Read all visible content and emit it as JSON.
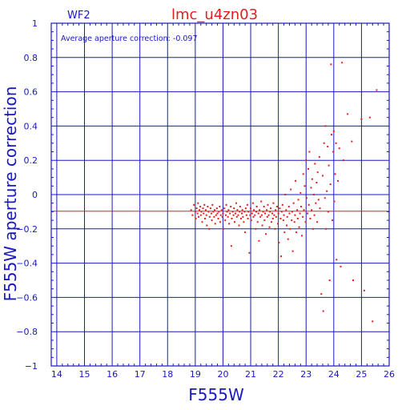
{
  "chart_data": {
    "type": "scatter",
    "title": "lmc_u4zn03",
    "chip_label": "WF2",
    "annotation": "Average aperture correction:  -0.097",
    "xlabel": "F555W",
    "ylabel": "F555W aperture correction",
    "xlim": [
      13.8,
      26
    ],
    "ylim": [
      -1,
      1
    ],
    "x_ticks": [
      14,
      15,
      16,
      17,
      18,
      19,
      20,
      21,
      22,
      23,
      24,
      25,
      26
    ],
    "y_ticks": [
      -1,
      -0.8,
      -0.6,
      -0.4,
      -0.2,
      0,
      0.2,
      0.4,
      0.6,
      0.8,
      1
    ],
    "y_tick_labels": [
      "−1",
      "−0.8",
      "−0.6",
      "−0.4",
      "−0.2",
      "0",
      "0.2",
      "0.4",
      "0.6",
      "0.8",
      "1"
    ],
    "grid": true,
    "reference_line": {
      "y": -0.097,
      "label": "average"
    },
    "colors": {
      "axes": "#1818c0",
      "points": "#e02020",
      "reference_line": "#e02020",
      "title": "#e02020"
    },
    "points": [
      [
        18.85,
        -0.09
      ],
      [
        18.9,
        -0.12
      ],
      [
        18.95,
        -0.06
      ],
      [
        19.0,
        -0.1
      ],
      [
        19.02,
        -0.14
      ],
      [
        19.05,
        -0.08
      ],
      [
        19.08,
        -0.11
      ],
      [
        19.1,
        -0.05
      ],
      [
        19.12,
        -0.13
      ],
      [
        19.15,
        -0.09
      ],
      [
        19.18,
        -0.07
      ],
      [
        19.2,
        -0.12
      ],
      [
        19.22,
        -0.1
      ],
      [
        19.25,
        -0.16
      ],
      [
        19.28,
        -0.08
      ],
      [
        19.3,
        -0.11
      ],
      [
        19.33,
        -0.06
      ],
      [
        19.35,
        -0.14
      ],
      [
        19.38,
        -0.09
      ],
      [
        19.4,
        -0.12
      ],
      [
        19.42,
        -0.18
      ],
      [
        19.45,
        -0.07
      ],
      [
        19.48,
        -0.1
      ],
      [
        19.5,
        -0.2
      ],
      [
        19.52,
        -0.13
      ],
      [
        19.55,
        -0.08
      ],
      [
        19.58,
        -0.11
      ],
      [
        19.6,
        -0.15
      ],
      [
        19.62,
        -0.06
      ],
      [
        19.65,
        -0.1
      ],
      [
        19.68,
        -0.13
      ],
      [
        19.7,
        -0.09
      ],
      [
        19.72,
        -0.17
      ],
      [
        19.75,
        -0.12
      ],
      [
        19.78,
        -0.08
      ],
      [
        19.8,
        -0.11
      ],
      [
        19.83,
        -0.14
      ],
      [
        19.85,
        -0.1
      ],
      [
        19.88,
        -0.07
      ],
      [
        19.9,
        -0.16
      ],
      [
        19.92,
        -0.12
      ],
      [
        19.95,
        -0.09
      ],
      [
        19.98,
        -0.13
      ],
      [
        20.0,
        -0.11
      ],
      [
        20.02,
        -0.2
      ],
      [
        20.05,
        -0.08
      ],
      [
        20.08,
        -0.15
      ],
      [
        20.1,
        -0.12
      ],
      [
        20.12,
        -0.06
      ],
      [
        20.15,
        -0.1
      ],
      [
        20.18,
        -0.13
      ],
      [
        20.2,
        -0.09
      ],
      [
        20.22,
        -0.17
      ],
      [
        20.25,
        -0.11
      ],
      [
        20.28,
        -0.07
      ],
      [
        20.3,
        -0.3
      ],
      [
        20.32,
        -0.14
      ],
      [
        20.35,
        -0.1
      ],
      [
        20.38,
        -0.12
      ],
      [
        20.4,
        -0.08
      ],
      [
        20.42,
        -0.16
      ],
      [
        20.45,
        -0.11
      ],
      [
        20.48,
        -0.05
      ],
      [
        20.5,
        -0.13
      ],
      [
        20.52,
        -0.09
      ],
      [
        20.55,
        -0.12
      ],
      [
        20.58,
        -0.18
      ],
      [
        20.6,
        -0.1
      ],
      [
        20.62,
        -0.07
      ],
      [
        20.65,
        -0.14
      ],
      [
        20.68,
        -0.11
      ],
      [
        20.7,
        -0.09
      ],
      [
        20.72,
        -0.13
      ],
      [
        20.75,
        -0.16
      ],
      [
        20.78,
        -0.1
      ],
      [
        20.8,
        -0.22
      ],
      [
        20.82,
        -0.08
      ],
      [
        20.85,
        -0.12
      ],
      [
        20.88,
        -0.06
      ],
      [
        20.9,
        -0.14
      ],
      [
        20.92,
        -0.1
      ],
      [
        20.95,
        -0.34
      ],
      [
        20.98,
        -0.12
      ],
      [
        21.0,
        -0.08
      ],
      [
        21.02,
        -0.15
      ],
      [
        21.05,
        -0.11
      ],
      [
        21.08,
        -0.05
      ],
      [
        21.1,
        -0.13
      ],
      [
        21.12,
        -0.09
      ],
      [
        21.15,
        -0.12
      ],
      [
        21.18,
        -0.2
      ],
      [
        21.2,
        -0.1
      ],
      [
        21.22,
        -0.07
      ],
      [
        21.25,
        -0.16
      ],
      [
        21.28,
        -0.11
      ],
      [
        21.3,
        -0.27
      ],
      [
        21.32,
        -0.09
      ],
      [
        21.35,
        -0.13
      ],
      [
        21.38,
        -0.04
      ],
      [
        21.4,
        -0.12
      ],
      [
        21.42,
        -0.18
      ],
      [
        21.45,
        -0.1
      ],
      [
        21.48,
        -0.07
      ],
      [
        21.5,
        -0.15
      ],
      [
        21.52,
        -0.11
      ],
      [
        21.55,
        -0.23
      ],
      [
        21.58,
        -0.09
      ],
      [
        21.6,
        -0.13
      ],
      [
        21.62,
        -0.06
      ],
      [
        21.65,
        -0.12
      ],
      [
        21.68,
        -0.19
      ],
      [
        21.7,
        -0.1
      ],
      [
        21.72,
        -0.08
      ],
      [
        21.75,
        -0.16
      ],
      [
        21.78,
        -0.11
      ],
      [
        21.8,
        -0.14
      ],
      [
        21.82,
        -0.05
      ],
      [
        21.85,
        -0.12
      ],
      [
        21.88,
        -0.2
      ],
      [
        21.9,
        -0.09
      ],
      [
        21.92,
        -0.13
      ],
      [
        21.95,
        -0.07
      ],
      [
        21.98,
        -0.17
      ],
      [
        22.0,
        -0.11
      ],
      [
        22.02,
        -0.28
      ],
      [
        22.05,
        -0.08
      ],
      [
        22.08,
        -0.14
      ],
      [
        22.1,
        -0.36
      ],
      [
        22.12,
        -0.1
      ],
      [
        22.15,
        -0.06
      ],
      [
        22.18,
        -0.15
      ],
      [
        22.2,
        -0.12
      ],
      [
        22.22,
        -0.22
      ],
      [
        22.25,
        0.0
      ],
      [
        22.28,
        -0.09
      ],
      [
        22.3,
        -0.18
      ],
      [
        22.32,
        -0.13
      ],
      [
        22.35,
        -0.26
      ],
      [
        22.38,
        -0.07
      ],
      [
        22.4,
        -0.11
      ],
      [
        22.42,
        -0.2
      ],
      [
        22.45,
        0.03
      ],
      [
        22.48,
        -0.15
      ],
      [
        22.5,
        -0.1
      ],
      [
        22.52,
        -0.33
      ],
      [
        22.55,
        -0.05
      ],
      [
        22.58,
        -0.16
      ],
      [
        22.6,
        -0.12
      ],
      [
        22.62,
        0.08
      ],
      [
        22.65,
        -0.22
      ],
      [
        22.68,
        -0.09
      ],
      [
        22.7,
        -0.14
      ],
      [
        22.72,
        -0.03
      ],
      [
        22.75,
        -0.19
      ],
      [
        22.78,
        -0.11
      ],
      [
        22.8,
        0.01
      ],
      [
        22.82,
        -0.07
      ],
      [
        22.85,
        -0.24
      ],
      [
        22.88,
        -0.13
      ],
      [
        22.9,
        0.12
      ],
      [
        22.92,
        -0.09
      ],
      [
        22.95,
        0.05
      ],
      [
        22.98,
        -0.16
      ],
      [
        23.0,
        0.2
      ],
      [
        23.02,
        -0.02
      ],
      [
        23.05,
        -0.11
      ],
      [
        23.08,
        0.15
      ],
      [
        23.1,
        -0.06
      ],
      [
        23.12,
        0.25
      ],
      [
        23.15,
        -0.14
      ],
      [
        23.18,
        0.04
      ],
      [
        23.2,
        -0.09
      ],
      [
        23.22,
        0.09
      ],
      [
        23.25,
        -0.2
      ],
      [
        23.28,
        0.0
      ],
      [
        23.3,
        -0.12
      ],
      [
        23.32,
        0.18
      ],
      [
        23.35,
        -0.05
      ],
      [
        23.38,
        0.07
      ],
      [
        23.4,
        -0.16
      ],
      [
        23.42,
        0.13
      ],
      [
        23.45,
        -0.03
      ],
      [
        23.48,
        0.22
      ],
      [
        23.5,
        -0.08
      ],
      [
        23.55,
        -0.58
      ],
      [
        23.6,
        0.11
      ],
      [
        23.62,
        -0.68
      ],
      [
        23.65,
        0.3
      ],
      [
        23.68,
        -0.02
      ],
      [
        23.7,
        0.4
      ],
      [
        23.72,
        -0.2
      ],
      [
        23.75,
        0.02
      ],
      [
        23.78,
        0.28
      ],
      [
        23.8,
        -0.1
      ],
      [
        23.82,
        0.17
      ],
      [
        23.85,
        -0.5
      ],
      [
        23.88,
        0.06
      ],
      [
        23.9,
        0.76
      ],
      [
        23.92,
        0.35
      ],
      [
        23.95,
        -0.15
      ],
      [
        23.98,
        0.25
      ],
      [
        24.0,
        0.37
      ],
      [
        24.02,
        -0.04
      ],
      [
        24.05,
        0.12
      ],
      [
        24.08,
        0.3
      ],
      [
        24.1,
        -0.38
      ],
      [
        24.15,
        0.08
      ],
      [
        24.2,
        0.27
      ],
      [
        24.25,
        -0.42
      ],
      [
        24.3,
        0.77
      ],
      [
        24.35,
        0.2
      ],
      [
        24.5,
        0.47
      ],
      [
        24.65,
        0.31
      ],
      [
        24.7,
        -0.5
      ],
      [
        25.0,
        0.44
      ],
      [
        25.1,
        -0.56
      ],
      [
        25.3,
        0.45
      ],
      [
        25.4,
        -0.74
      ],
      [
        25.55,
        0.61
      ]
    ]
  }
}
